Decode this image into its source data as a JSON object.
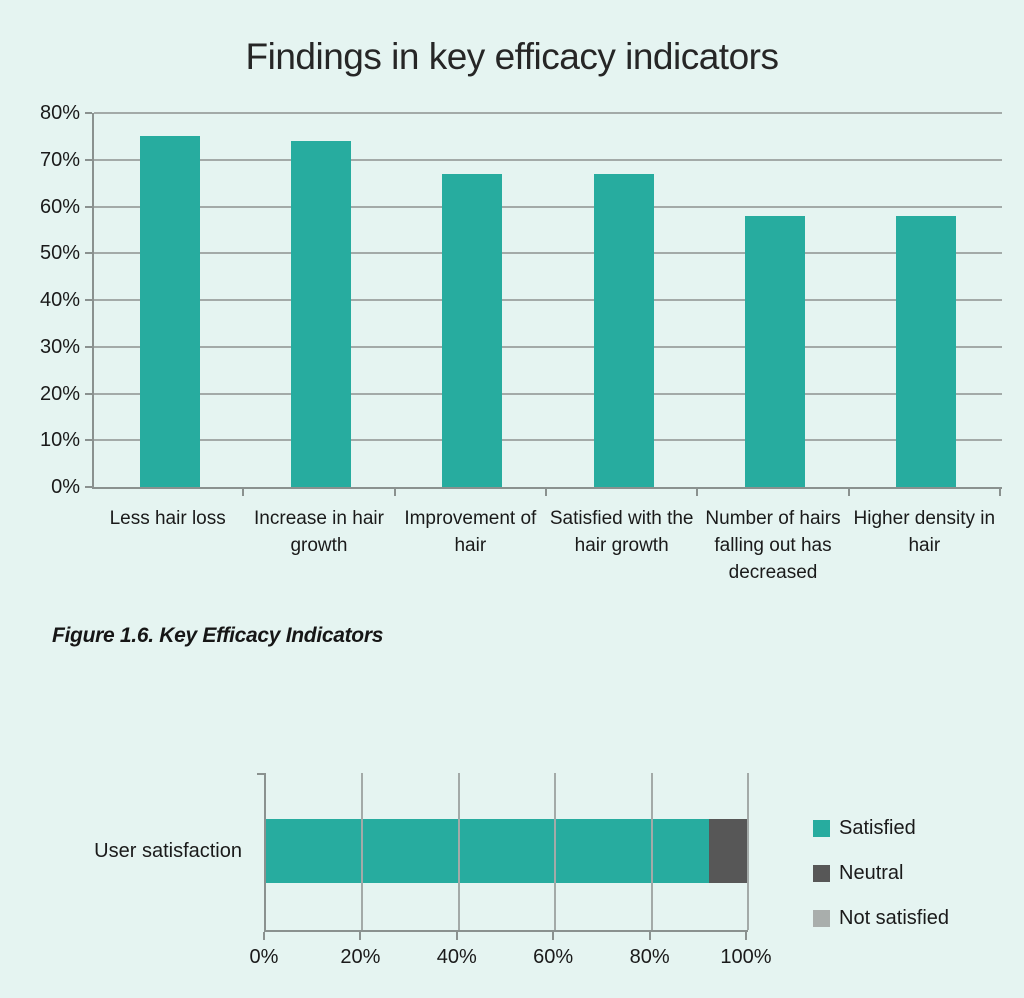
{
  "page": {
    "background": "#e5f4f1"
  },
  "title": "Findings in key efficacy indicators",
  "caption": "Figure 1.6. Key Efficacy Indicators",
  "colors": {
    "bar_teal": "#27ac9f",
    "neutral_gray": "#575757",
    "not_satisfied_gray": "#a9aeac",
    "gridline": "#a3aaa8",
    "axis": "#8a918f",
    "text": "#1a1a1a"
  },
  "chart_data": [
    {
      "type": "bar",
      "title": "Findings in key efficacy indicators",
      "categories": [
        "Less hair loss",
        "Increase in hair growth",
        "Improvement of hair",
        "Satisfied with the hair growth",
        "Number of hairs falling out has decreased",
        "Higher density in hair"
      ],
      "values": [
        75,
        74,
        67,
        67,
        58,
        58
      ],
      "unit": "%",
      "bar_color": "#27ac9f",
      "ylim": [
        0,
        80
      ],
      "ytick_step": 10,
      "ytick_labels": [
        "0%",
        "10%",
        "20%",
        "30%",
        "40%",
        "50%",
        "60%",
        "70%",
        "80%"
      ],
      "grid": "horizontal",
      "legend_position": "none"
    },
    {
      "type": "stacked-bar-horizontal",
      "categories": [
        "User satisfaction"
      ],
      "series": [
        {
          "name": "Satisfied",
          "values": [
            92
          ],
          "color": "#27ac9f"
        },
        {
          "name": "Neutral",
          "values": [
            8
          ],
          "color": "#575757"
        },
        {
          "name": "Not satisfied",
          "values": [
            0
          ],
          "color": "#a9aeac"
        }
      ],
      "unit": "%",
      "xlim": [
        0,
        100
      ],
      "xtick_step": 20,
      "xtick_labels": [
        "0%",
        "20%",
        "40%",
        "60%",
        "80%",
        "100%"
      ],
      "grid": "vertical",
      "legend_position": "right"
    }
  ]
}
